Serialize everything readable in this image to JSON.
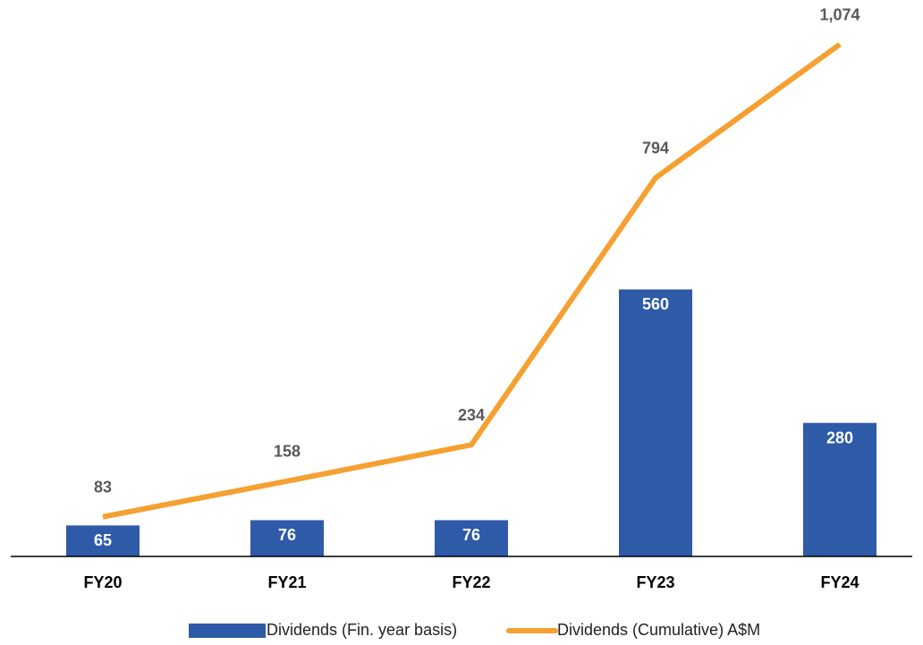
{
  "chart_data": {
    "type": "combo",
    "categories": [
      "FY20",
      "FY21",
      "FY22",
      "FY23",
      "FY24"
    ],
    "series": [
      {
        "name": "Dividends (Fin. year basis)",
        "type": "bar",
        "color": "#2e5aa8",
        "values": [
          65,
          76,
          76,
          560,
          280
        ]
      },
      {
        "name": "Dividends (Cumulative) A$M",
        "type": "line",
        "color": "#f5a031",
        "values": [
          83,
          158,
          234,
          794,
          1074
        ],
        "value_labels": [
          "83",
          "158",
          "234",
          "794",
          "1,074"
        ]
      }
    ],
    "ylim": [
      0,
      1150
    ],
    "legend": "bottom"
  }
}
